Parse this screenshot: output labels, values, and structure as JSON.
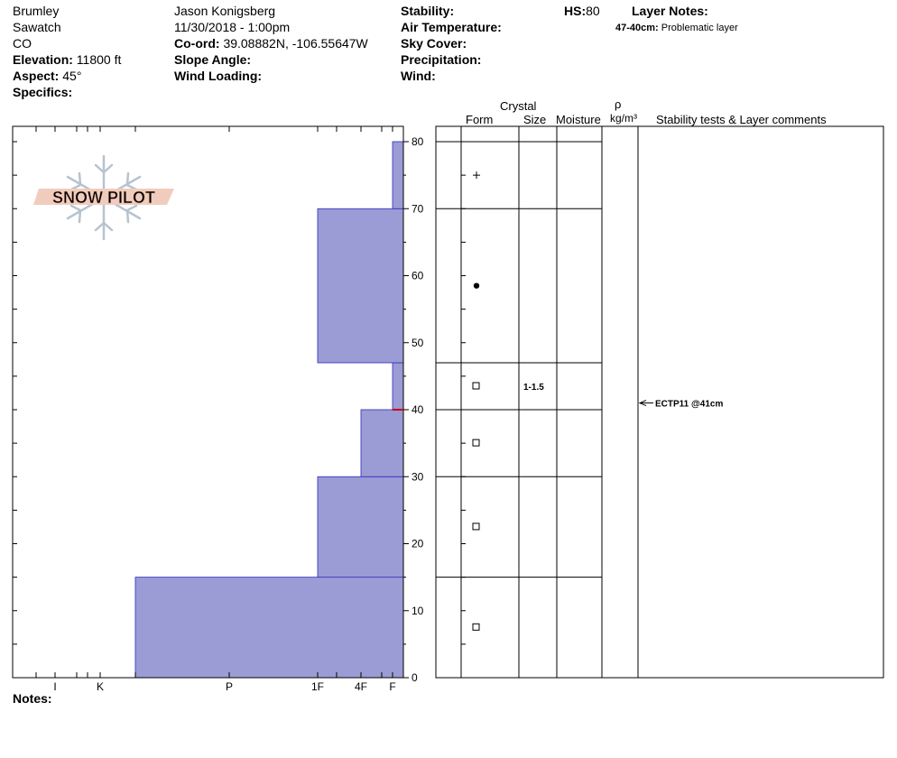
{
  "header": {
    "location": "Brumley",
    "range": "Sawatch",
    "state": "CO",
    "elevation_label": "Elevation:",
    "elevation_value": "11800 ft",
    "aspect_label": "Aspect:",
    "aspect_value": "45°",
    "specifics_label": "Specifics:",
    "observer": "Jason Konigsberg",
    "datetime": "11/30/2018 - 1:00pm",
    "coord_label": "Co-ord:",
    "coord_value": "39.08882N, -106.55647W",
    "slope_label": "Slope Angle:",
    "wind_loading_label": "Wind Loading:",
    "stability_label": "Stability:",
    "air_temp_label": "Air Temperature:",
    "sky_cover_label": "Sky Cover:",
    "precip_label": "Precipitation:",
    "wind_label": "Wind:",
    "hs_label": "HS:",
    "hs_value": "80",
    "layer_notes_label": "Layer Notes:",
    "layer_note_range": "47-40cm:",
    "layer_note_text": "Problematic layer"
  },
  "logo_text": "SNOW PILOT",
  "notes_label": "Notes:",
  "columns": {
    "crystal": "Crystal",
    "form": "Form",
    "size": "Size",
    "moisture": "Moisture",
    "rho": "ρ",
    "density_unit": "kg/m³",
    "stability": "Stability tests & Layer comments"
  },
  "colors": {
    "hardness_fill": "#9b9bd6",
    "hardness_stroke": "#2d2dbb",
    "problem_line": "#cc0000"
  },
  "chart_data": {
    "type": "snow-profile",
    "y_axis": {
      "unit": "cm",
      "min": 0,
      "max": 80,
      "ticks": [
        0,
        10,
        20,
        30,
        40,
        50,
        60,
        70,
        80
      ]
    },
    "hardness_ticks": [
      "I",
      "K",
      "P",
      "1F",
      "4F",
      "F"
    ],
    "hardness_layers": [
      {
        "bottom": 0,
        "top": 15,
        "hardness": "P-"
      },
      {
        "bottom": 15,
        "top": 30,
        "hardness": "1F"
      },
      {
        "bottom": 30,
        "top": 40,
        "hardness": "4F"
      },
      {
        "bottom": 40,
        "top": 47,
        "hardness": "F"
      },
      {
        "bottom": 47,
        "top": 70,
        "hardness": "1F"
      },
      {
        "bottom": 70,
        "top": 80,
        "hardness": "F-"
      }
    ],
    "layer_boundaries": [
      15,
      30,
      40,
      47,
      70,
      80
    ],
    "grain_forms": [
      {
        "height": 75,
        "symbol": "+",
        "size": ""
      },
      {
        "height": 58.5,
        "symbol": "●",
        "size": ""
      },
      {
        "height": 43.5,
        "symbol": "□",
        "size": "1-1.5"
      },
      {
        "height": 35,
        "symbol": "□",
        "size": ""
      },
      {
        "height": 22.5,
        "symbol": "□",
        "size": ""
      },
      {
        "height": 7.5,
        "symbol": "□",
        "size": ""
      }
    ],
    "problem_layer": {
      "height": 40
    },
    "stability_tests": [
      {
        "height": 41,
        "label": "ECTP11 @41cm"
      }
    ]
  }
}
